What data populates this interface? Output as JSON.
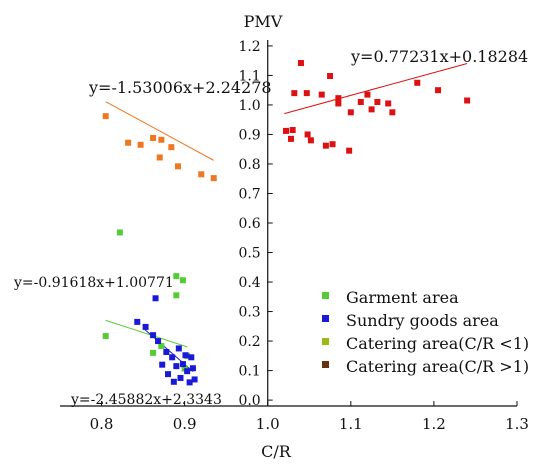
{
  "chart_data": {
    "type": "scatter",
    "title": "",
    "xlabel": "C/R",
    "ylabel": "PMV",
    "xlim": [
      0.75,
      1.3
    ],
    "ylim": [
      -0.02,
      1.22
    ],
    "x_ticks": [
      0.8,
      0.9,
      1.0,
      1.1,
      1.2,
      1.3
    ],
    "x_tick_labels": [
      "0.8",
      "0.9",
      "1.0",
      "1.1",
      "1.2",
      "1.3"
    ],
    "y_ticks": [
      0.0,
      0.1,
      0.2,
      0.3,
      0.4,
      0.5,
      0.6,
      0.7,
      0.8,
      0.9,
      1.0,
      1.1,
      1.2
    ],
    "y_tick_labels": [
      "0.0",
      "0.1",
      "0.2",
      "0.3",
      "0.4",
      "0.5",
      "0.6",
      "0.7",
      "0.8",
      "0.9",
      "1.0",
      "1.1",
      "1.2"
    ],
    "grid": false,
    "legend_position": "bottom-right",
    "series": [
      {
        "name": "Garment area",
        "color": "#55cc33",
        "points": [
          [
            0.805,
            0.217
          ],
          [
            0.822,
            0.568
          ],
          [
            0.862,
            0.16
          ],
          [
            0.872,
            0.183
          ],
          [
            0.89,
            0.42
          ],
          [
            0.898,
            0.406
          ],
          [
            0.89,
            0.355
          ],
          [
            0.9,
            0.107
          ],
          [
            0.903,
            0.15
          ]
        ],
        "fit": {
          "label": "y=-0.91618x+1.00771",
          "slope": -0.91618,
          "intercept": 1.00771,
          "x_range": [
            0.805,
            0.903
          ]
        }
      },
      {
        "name": "Sundry goods area",
        "color": "#1a1ad6",
        "points": [
          [
            0.843,
            0.265
          ],
          [
            0.853,
            0.248
          ],
          [
            0.862,
            0.22
          ],
          [
            0.868,
            0.2
          ],
          [
            0.865,
            0.345
          ],
          [
            0.873,
            0.12
          ],
          [
            0.878,
            0.163
          ],
          [
            0.88,
            0.088
          ],
          [
            0.885,
            0.145
          ],
          [
            0.887,
            0.062
          ],
          [
            0.89,
            0.115
          ],
          [
            0.893,
            0.175
          ],
          [
            0.895,
            0.075
          ],
          [
            0.898,
            0.122
          ],
          [
            0.901,
            0.152
          ],
          [
            0.903,
            0.098
          ],
          [
            0.906,
            0.06
          ],
          [
            0.908,
            0.145
          ],
          [
            0.91,
            0.108
          ],
          [
            0.912,
            0.07
          ]
        ],
        "fit": {
          "label": "y=-2.45882x+2.3343",
          "slope": -2.45882,
          "intercept": 2.3343,
          "x_range": [
            0.852,
            0.91
          ]
        }
      },
      {
        "name": "Catering area(C/R <1)",
        "color": "#ee7722",
        "points": [
          [
            0.805,
            0.962
          ],
          [
            0.832,
            0.872
          ],
          [
            0.847,
            0.865
          ],
          [
            0.862,
            0.888
          ],
          [
            0.87,
            0.822
          ],
          [
            0.872,
            0.882
          ],
          [
            0.884,
            0.857
          ],
          [
            0.892,
            0.792
          ],
          [
            0.92,
            0.765
          ],
          [
            0.935,
            0.752
          ]
        ],
        "fit": {
          "label": "y=-1.53006x+2.24278",
          "slope": -1.53006,
          "intercept": 2.24278,
          "x_range": [
            0.805,
            0.935
          ]
        }
      },
      {
        "name": "Catering area(C/R >1)",
        "color": "#dd1111",
        "points": [
          [
            1.022,
            0.912
          ],
          [
            1.028,
            0.885
          ],
          [
            1.032,
            1.04
          ],
          [
            1.03,
            0.915
          ],
          [
            1.04,
            1.142
          ],
          [
            1.047,
            1.04
          ],
          [
            1.048,
            0.9
          ],
          [
            1.052,
            0.88
          ],
          [
            1.065,
            1.035
          ],
          [
            1.07,
            0.862
          ],
          [
            1.075,
            1.098
          ],
          [
            1.078,
            0.867
          ],
          [
            1.085,
            1.005
          ],
          [
            1.085,
            1.023
          ],
          [
            1.1,
            0.975
          ],
          [
            1.098,
            0.845
          ],
          [
            1.112,
            1.01
          ],
          [
            1.12,
            1.035
          ],
          [
            1.125,
            0.985
          ],
          [
            1.132,
            1.01
          ],
          [
            1.145,
            1.005
          ],
          [
            1.15,
            0.975
          ],
          [
            1.18,
            1.075
          ],
          [
            1.205,
            1.05
          ],
          [
            1.24,
            1.015
          ]
        ],
        "fit": {
          "label": "y=0.77231x+0.18284",
          "slope": 0.77231,
          "intercept": 0.18284,
          "x_range": [
            1.02,
            1.24
          ]
        }
      }
    ]
  }
}
